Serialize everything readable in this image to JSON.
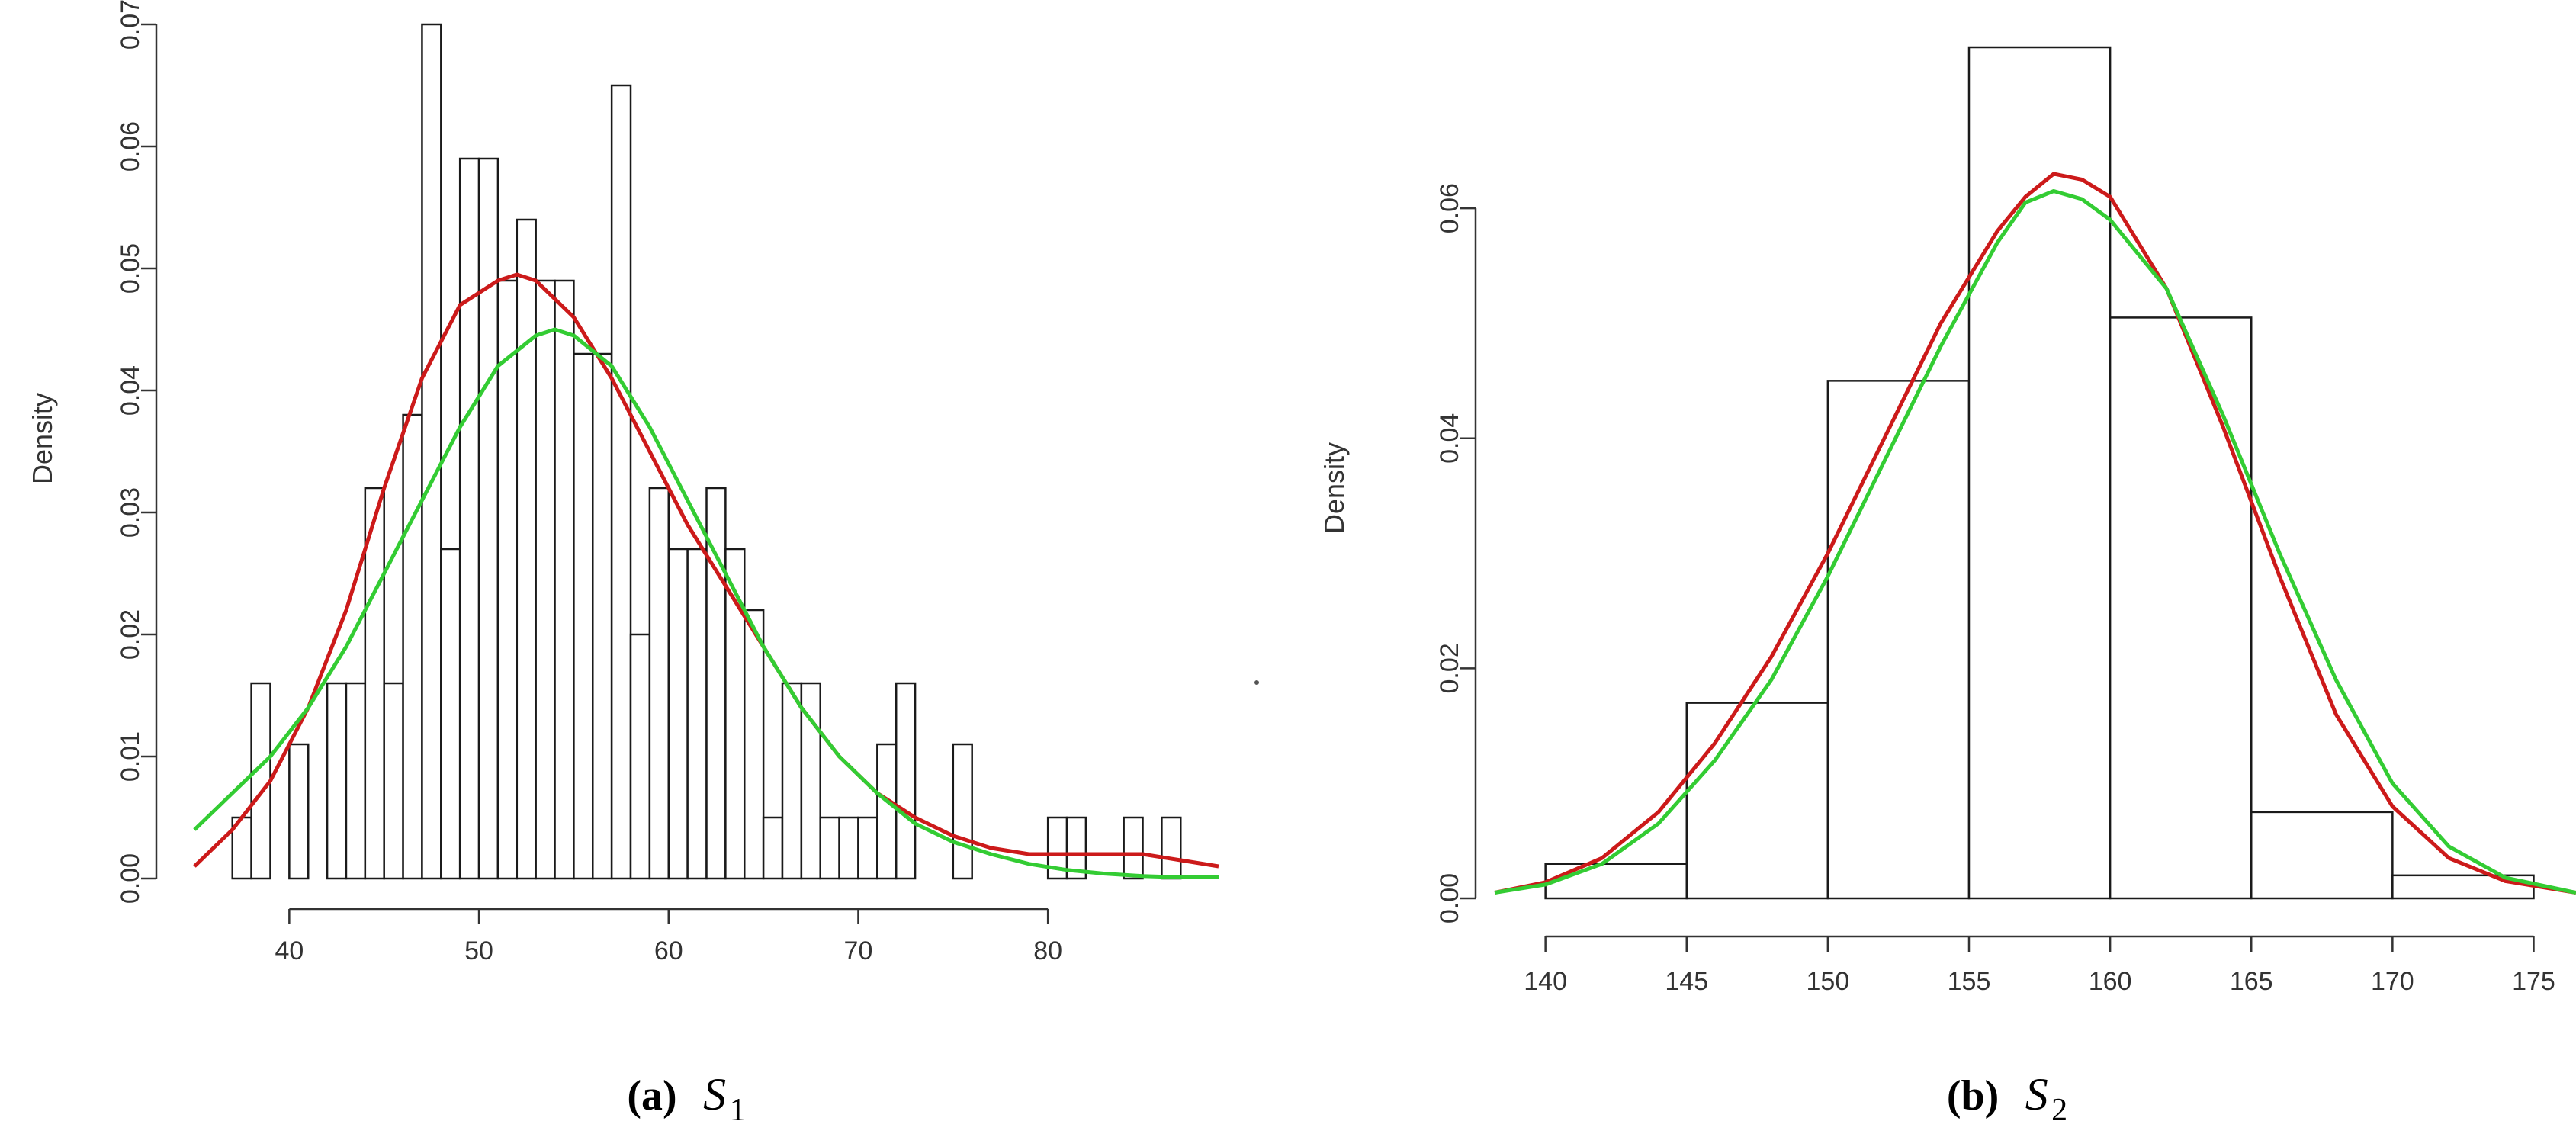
{
  "chart_data": [
    {
      "type": "bar",
      "subtype": "histogram-with-density-curves",
      "caption_label": "(a)",
      "caption_symbol": "S",
      "caption_subscript": "1",
      "ylabel": "Density",
      "xlabel": "",
      "xlim": [
        35,
        89
      ],
      "ylim": [
        0,
        0.07
      ],
      "x_ticks": [
        40,
        50,
        60,
        70,
        80
      ],
      "y_ticks": [
        "0.00",
        "0.01",
        "0.02",
        "0.03",
        "0.04",
        "0.05",
        "0.06",
        "0.07"
      ],
      "bin_width": 1,
      "bins": [
        {
          "x": 37,
          "density": 0.005
        },
        {
          "x": 38,
          "density": 0.016
        },
        {
          "x": 39,
          "density": 0.0
        },
        {
          "x": 40,
          "density": 0.011
        },
        {
          "x": 41,
          "density": 0.0
        },
        {
          "x": 42,
          "density": 0.016
        },
        {
          "x": 43,
          "density": 0.016
        },
        {
          "x": 44,
          "density": 0.032
        },
        {
          "x": 45,
          "density": 0.016
        },
        {
          "x": 46,
          "density": 0.038
        },
        {
          "x": 47,
          "density": 0.07
        },
        {
          "x": 48,
          "density": 0.027
        },
        {
          "x": 49,
          "density": 0.059
        },
        {
          "x": 50,
          "density": 0.059
        },
        {
          "x": 51,
          "density": 0.049
        },
        {
          "x": 52,
          "density": 0.054
        },
        {
          "x": 53,
          "density": 0.049
        },
        {
          "x": 54,
          "density": 0.049
        },
        {
          "x": 55,
          "density": 0.043
        },
        {
          "x": 56,
          "density": 0.043
        },
        {
          "x": 57,
          "density": 0.065
        },
        {
          "x": 58,
          "density": 0.02
        },
        {
          "x": 59,
          "density": 0.032
        },
        {
          "x": 60,
          "density": 0.027
        },
        {
          "x": 61,
          "density": 0.027
        },
        {
          "x": 62,
          "density": 0.032
        },
        {
          "x": 63,
          "density": 0.027
        },
        {
          "x": 64,
          "density": 0.022
        },
        {
          "x": 65,
          "density": 0.005
        },
        {
          "x": 66,
          "density": 0.016
        },
        {
          "x": 67,
          "density": 0.016
        },
        {
          "x": 68,
          "density": 0.005
        },
        {
          "x": 69,
          "density": 0.005
        },
        {
          "x": 70,
          "density": 0.005
        },
        {
          "x": 71,
          "density": 0.011
        },
        {
          "x": 72,
          "density": 0.016
        },
        {
          "x": 73,
          "density": 0.0
        },
        {
          "x": 74,
          "density": 0.0
        },
        {
          "x": 75,
          "density": 0.011
        },
        {
          "x": 80,
          "density": 0.005
        },
        {
          "x": 81,
          "density": 0.005
        },
        {
          "x": 84,
          "density": 0.005
        },
        {
          "x": 86,
          "density": 0.005
        }
      ],
      "series": [
        {
          "color": "#cc1a1a",
          "x": [
            35,
            37,
            39,
            41,
            43,
            45,
            47,
            49,
            51,
            52,
            53,
            55,
            57,
            59,
            61,
            63,
            65,
            67,
            69,
            71,
            73,
            75,
            77,
            79,
            81,
            83,
            85,
            87,
            89
          ],
          "y": [
            0.001,
            0.004,
            0.008,
            0.014,
            0.022,
            0.032,
            0.041,
            0.047,
            0.049,
            0.0495,
            0.049,
            0.046,
            0.041,
            0.035,
            0.029,
            0.024,
            0.019,
            0.014,
            0.01,
            0.007,
            0.005,
            0.0035,
            0.0025,
            0.002,
            0.002,
            0.002,
            0.002,
            0.0015,
            0.001
          ]
        },
        {
          "color": "#33cc33",
          "x": [
            35,
            37,
            39,
            41,
            43,
            45,
            47,
            49,
            51,
            53,
            54,
            55,
            57,
            59,
            61,
            63,
            65,
            67,
            69,
            71,
            73,
            75,
            77,
            79,
            81,
            83,
            85,
            87,
            89
          ],
          "y": [
            0.004,
            0.007,
            0.01,
            0.014,
            0.019,
            0.025,
            0.031,
            0.037,
            0.042,
            0.0445,
            0.045,
            0.0445,
            0.042,
            0.037,
            0.031,
            0.025,
            0.019,
            0.014,
            0.01,
            0.007,
            0.0045,
            0.003,
            0.002,
            0.0012,
            0.0007,
            0.0004,
            0.0002,
            0.0001,
            0.0001
          ]
        }
      ]
    },
    {
      "type": "bar",
      "subtype": "histogram-with-density-curves",
      "caption_label": "(b)",
      "caption_symbol": "S",
      "caption_subscript": "2",
      "ylabel": "Density",
      "xlabel": "",
      "xlim": [
        138.2,
        176.5
      ],
      "ylim": [
        0,
        0.074
      ],
      "x_ticks": [
        140,
        145,
        150,
        155,
        160,
        165,
        170,
        175
      ],
      "y_ticks": [
        "0.00",
        "0.02",
        "0.04",
        "0.06"
      ],
      "y_tick_values": [
        0,
        0.02,
        0.04,
        0.06
      ],
      "bin_width": 5,
      "bins": [
        {
          "x": 140,
          "density": 0.003
        },
        {
          "x": 145,
          "density": 0.017
        },
        {
          "x": 150,
          "density": 0.045
        },
        {
          "x": 155,
          "density": 0.074
        },
        {
          "x": 160,
          "density": 0.0505
        },
        {
          "x": 165,
          "density": 0.0075
        },
        {
          "x": 170,
          "density": 0.002
        }
      ],
      "series": [
        {
          "color": "#cc1a1a",
          "x": [
            138.2,
            140,
            142,
            144,
            146,
            148,
            150,
            152,
            154,
            156,
            157,
            158,
            159,
            160,
            162,
            164,
            166,
            168,
            170,
            172,
            174,
            176.5
          ],
          "y": [
            0.0005,
            0.0014,
            0.0035,
            0.0075,
            0.0135,
            0.021,
            0.03,
            0.04,
            0.05,
            0.058,
            0.061,
            0.063,
            0.0625,
            0.061,
            0.053,
            0.041,
            0.028,
            0.016,
            0.008,
            0.0035,
            0.0015,
            0.0005
          ]
        },
        {
          "color": "#33cc33",
          "x": [
            138.2,
            140,
            142,
            144,
            146,
            148,
            150,
            152,
            154,
            156,
            157,
            158,
            159,
            160,
            162,
            164,
            166,
            168,
            170,
            172,
            174,
            176.5
          ],
          "y": [
            0.0005,
            0.0012,
            0.003,
            0.0065,
            0.012,
            0.019,
            0.028,
            0.038,
            0.048,
            0.057,
            0.0605,
            0.0615,
            0.0608,
            0.059,
            0.053,
            0.042,
            0.03,
            0.019,
            0.01,
            0.0045,
            0.0018,
            0.0005
          ]
        }
      ]
    }
  ]
}
